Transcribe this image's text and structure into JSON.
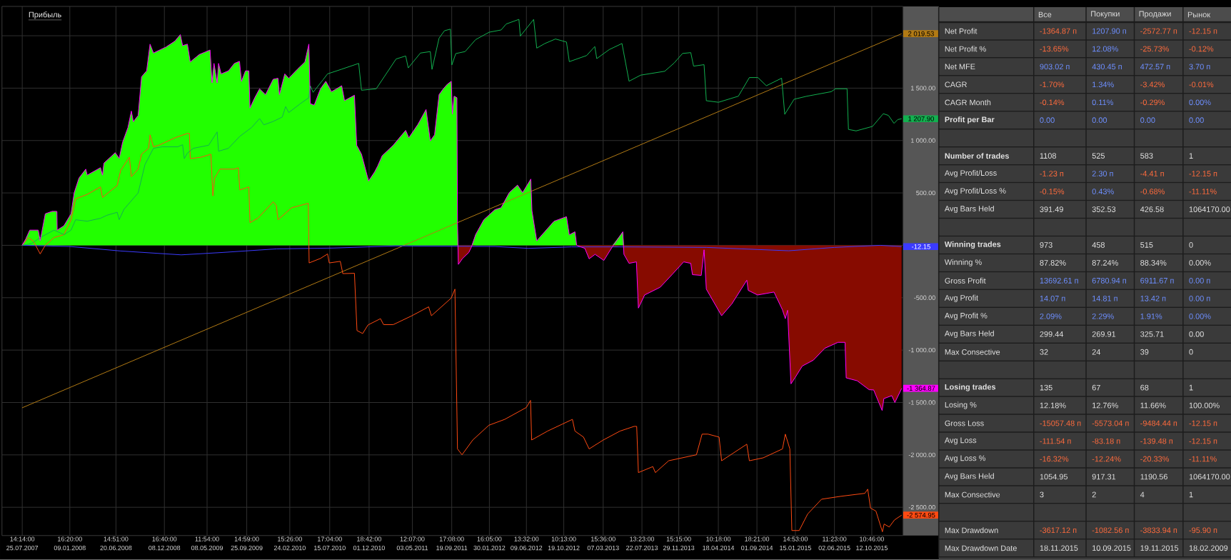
{
  "chart_data": [
    {
      "type": "line",
      "title": "Прибыль",
      "x": [
        "2007-07-25",
        "2007-08-07",
        "2007-08-21",
        "2007-09-20",
        "2007-09-27",
        "2007-10-15",
        "2007-11-08",
        "2007-11-25",
        "2007-11-26",
        "2007-12-20",
        "2008-01-14",
        "2008-01-25",
        "2008-02-11",
        "2008-03-06",
        "2008-03-11",
        "2008-04-27",
        "2008-05-04",
        "2008-05-09",
        "2008-06-18",
        "2008-07-02",
        "2008-07-14",
        "2008-08-02",
        "2008-08-14",
        "2008-08-21",
        "2008-09-07",
        "2008-09-19",
        "2008-10-07",
        "2008-10-19",
        "2008-10-31",
        "2008-12-14",
        "2009-01-15",
        "2009-02-03",
        "2009-02-11",
        "2009-02-28",
        "2009-03-10",
        "2009-04-11",
        "2009-05-19",
        "2009-05-26",
        "2009-06-02",
        "2009-06-13",
        "2009-06-18",
        "2009-06-27",
        "2009-07-23",
        "2009-08-13",
        "2009-08-31",
        "2009-09-07",
        "2009-09-21",
        "2009-10-03",
        "2009-10-07",
        "2009-10-24",
        "2009-11-10",
        "2009-12-01",
        "2009-12-28",
        "2010-01-14",
        "2010-01-19",
        "2010-02-07",
        "2010-02-21",
        "2010-03-23",
        "2010-04-19",
        "2010-05-03",
        "2010-05-08",
        "2010-05-22",
        "2010-06-13",
        "2010-07-02",
        "2010-07-22",
        "2010-08-27",
        "2010-09-06",
        "2010-10-11",
        "2010-10-19",
        "2010-11-05",
        "2010-11-30",
        "2010-12-21",
        "2011-01-01",
        "2011-01-17",
        "2011-02-25",
        "2011-04-10",
        "2011-04-21",
        "2011-05-23",
        "2011-06-21",
        "2011-07-06",
        "2011-07-21",
        "2011-08-06",
        "2011-08-21",
        "2011-09-04",
        "2011-09-18",
        "2011-09-22",
        "2011-09-28",
        "2011-10-08",
        "2011-10-10",
        "2011-10-13",
        "2011-10-28",
        "2011-11-19",
        "2011-11-29",
        "2011-12-13",
        "2012-01-11",
        "2012-02-19",
        "2012-03-12",
        "2012-04-10",
        "2012-05-09",
        "2012-05-27",
        "2012-06-25",
        "2012-06-29",
        "2012-07-16",
        "2012-08-13",
        "2012-09-15",
        "2012-10-29",
        "2012-11-08",
        "2012-11-28",
        "2012-12-04",
        "2013-01-02",
        "2013-01-17",
        "2013-02-07",
        "2013-03-10",
        "2013-04-09",
        "2013-05-16",
        "2013-05-20",
        "2013-06-07",
        "2013-07-03",
        "2013-07-10",
        "2013-08-01",
        "2013-09-25",
        "2013-11-08",
        "2013-12-17",
        "2014-01-11",
        "2014-01-17",
        "2014-02-17",
        "2014-02-27",
        "2014-03-07",
        "2014-04-30",
        "2014-06-05",
        "2014-07-28",
        "2014-08-02",
        "2014-09-04",
        "2014-11-01",
        "2014-12-01",
        "2014-12-11",
        "2014-12-19",
        "2014-12-31",
        "2015-01-15",
        "2015-02-09",
        "2015-03-20",
        "2015-04-29",
        "2015-06-15",
        "2015-07-10",
        "2015-07-14",
        "2015-08-22",
        "2015-10-03",
        "2015-10-19",
        "2015-11-18",
        "2015-11-24",
        "2015-12-22",
        "2016-01-02",
        "2016-01-26"
      ],
      "xlim": [
        "2007-05-15",
        "2016-01-31"
      ],
      "ylim": [
        -2770,
        2280
      ],
      "xticks": [
        {
          "value": "2007-07-25T14:14",
          "label": "14:14:00 25.07.2007"
        },
        {
          "value": "2008-01-09T16:20",
          "label": "16:20:00 09.01.2008"
        },
        {
          "value": "2008-06-20T14:51",
          "label": "14:51:00 20.06.2008"
        },
        {
          "value": "2008-12-08T16:40",
          "label": "16:40:00 08.12.2008"
        },
        {
          "value": "2009-05-08T11:54",
          "label": "11:54:00 08.05.2009"
        },
        {
          "value": "2009-09-25T14:59",
          "label": "14:59:00 25.09.2009"
        },
        {
          "value": "2010-02-24T15:26",
          "label": "15:26:00 24.02.2010"
        },
        {
          "value": "2010-07-15T17:04",
          "label": "17:04:00 15.07.2010"
        },
        {
          "value": "2010-12-01T18:42",
          "label": "18:42:00 01.12.2010"
        },
        {
          "value": "2011-05-03T12:07",
          "label": "12:07:00 03.05.2011"
        },
        {
          "value": "2011-09-19T17:08",
          "label": "17:08:00 19.09.2011"
        },
        {
          "value": "2012-01-30T16:05",
          "label": "16:05:00 30.01.2012"
        },
        {
          "value": "2012-06-09T13:32",
          "label": "13:32:00 09.06.2012"
        },
        {
          "value": "2012-10-19T10:13",
          "label": "10:13:00 19.10.2012"
        },
        {
          "value": "2013-03-07T15:36",
          "label": "15:36:00 07.03.2013"
        },
        {
          "value": "2013-07-22T13:23",
          "label": "13:23:00 22.07.2013"
        },
        {
          "value": "2013-11-29T15:15",
          "label": "15:15:00 29.11.2013"
        },
        {
          "value": "2014-04-18T10:18",
          "label": "10:18:00 18.04.2014"
        },
        {
          "value": "2014-09-01T18:21",
          "label": "18:21:00 01.09.2014"
        },
        {
          "value": "2015-01-15T14:53",
          "label": "14:53:00 15.01.2015"
        },
        {
          "value": "2015-06-02T11:23",
          "label": "11:23:00 02.06.2015"
        },
        {
          "value": "2015-10-12T10:46",
          "label": "10:46:00 12.10.2015"
        }
      ],
      "yticks": [
        {
          "value": -2500,
          "label": "-2 500.00"
        },
        {
          "value": -2000,
          "label": "-2 000.00"
        },
        {
          "value": -1500,
          "label": "-1 500.00"
        },
        {
          "value": -1000,
          "label": "-1 000.00"
        },
        {
          "value": -500,
          "label": "-500.00"
        },
        {
          "value": 0,
          "label": null
        },
        {
          "value": 500,
          "label": "500.00"
        },
        {
          "value": 1000,
          "label": "1 000.00"
        },
        {
          "value": 1500,
          "label": "1 500.00"
        },
        {
          "value": 2000,
          "label": null
        }
      ],
      "grid": true,
      "series": [
        {
          "type": "area",
          "color": "#22ff00",
          "values": [
            0,
            60,
            145,
            145,
            45,
            301,
            324,
            324,
            145,
            187,
            301,
            500,
            642,
            727,
            670,
            741,
            670,
            784,
            884,
            830,
            983,
            1125,
            1281,
            1180,
            1239,
            1608,
            1665,
            1920,
            1835,
            1892,
            1949,
            2011,
            1906,
            1920,
            1750,
            1821,
            1864,
            1551,
            1736,
            1551,
            1736,
            1636,
            1665,
            1736,
            1756,
            1565,
            1665,
            1665,
            1310,
            1409,
            1494,
            1438,
            1585,
            1594,
            1438,
            1636,
            1594,
            1679,
            1750,
            1920,
            1352,
            1338,
            1494,
            1565,
            1466,
            1523,
            1381,
            1432,
            955,
            869,
            614,
            699,
            756,
            855,
            955,
            1097,
            1026,
            1153,
            1296,
            997,
            1054,
            1438,
            1494,
            1537,
            1565,
            1253,
            1423,
            1409,
            216,
            0,
            0,
            0,
            0,
            102,
            244,
            340,
            359,
            503,
            575,
            503,
            632,
            330,
            43,
            129,
            230,
            273,
            100,
            129,
            0,
            0,
            0,
            0,
            0,
            0,
            129,
            0,
            0,
            0,
            0,
            0,
            0,
            0,
            0,
            0,
            0,
            0,
            0,
            0,
            0,
            0,
            0,
            0,
            0,
            0,
            0,
            0,
            0,
            0,
            0,
            0,
            0,
            0,
            0,
            0,
            0,
            0,
            0,
            0,
            0,
            0,
            0,
            0,
            0
          ]
        },
        {
          "type": "area",
          "color": "#870b00",
          "values": [
            0,
            0,
            0,
            0,
            0,
            0,
            0,
            0,
            0,
            0,
            0,
            0,
            0,
            0,
            0,
            0,
            0,
            0,
            0,
            0,
            0,
            0,
            0,
            0,
            0,
            0,
            0,
            0,
            0,
            0,
            0,
            0,
            0,
            0,
            0,
            0,
            0,
            0,
            0,
            0,
            0,
            0,
            0,
            0,
            0,
            0,
            0,
            0,
            0,
            0,
            0,
            0,
            0,
            0,
            0,
            0,
            0,
            0,
            0,
            0,
            0,
            0,
            0,
            0,
            0,
            0,
            0,
            0,
            0,
            0,
            0,
            0,
            0,
            0,
            0,
            0,
            0,
            0,
            0,
            0,
            0,
            0,
            0,
            0,
            0,
            0,
            0,
            0,
            0,
            -182,
            -125,
            -68,
            -11,
            0,
            0,
            0,
            0,
            0,
            0,
            0,
            0,
            0,
            0,
            0,
            0,
            0,
            0,
            0,
            0,
            -29,
            -129,
            -86,
            -144,
            -14,
            0,
            -86,
            -172,
            -158,
            -599,
            -474,
            -400,
            -273,
            -158,
            -172,
            -280,
            -287,
            -43,
            -418,
            -672,
            -559,
            -333,
            -430,
            -474,
            -446,
            -616,
            -700,
            -620,
            -1322,
            -1260,
            -1152,
            -1096,
            -983,
            -926,
            -926,
            -1265,
            -1293,
            -1378,
            -1380,
            -1576,
            -1463,
            -1435,
            -1500,
            -1364.87
          ]
        },
        {
          "type": "line",
          "color": "#b27a14",
          "x": [
            "2007-07-25",
            "2016-01-26"
          ],
          "values": [
            -1551,
            2019.53
          ]
        },
        {
          "type": "line",
          "color": "#3b3bff",
          "x": [
            "2007-07-25",
            "2008-01-09",
            "2008-07-07",
            "2009-02-06",
            "2009-07-03",
            "2010-01-09",
            "2010-07-29",
            "2011-03-03",
            "2012-02-19",
            "2012-06-16",
            "2012-11-16",
            "2013-05-28",
            "2014-03-07",
            "2014-12-23",
            "2015-06-02",
            "2015-11-11",
            "2016-01-26"
          ],
          "values": [
            0,
            -11,
            -54,
            -91,
            -68,
            -34,
            -26,
            -6,
            -11,
            -29,
            -15,
            -15,
            -20,
            -52,
            -20,
            0,
            -12.15
          ]
        },
        {
          "type": "line",
          "color": "#ff4a12",
          "x": [
            "2007-07-25",
            "2007-08-16",
            "2007-09-03",
            "2007-09-27",
            "2007-10-15",
            "2007-11-15",
            "2007-12-20",
            "2008-01-14",
            "2008-01-30",
            "2008-03-11",
            "2008-04-27",
            "2008-05-04",
            "2008-06-25",
            "2008-07-07",
            "2008-08-07",
            "2008-08-14",
            "2008-09-07",
            "2008-09-19",
            "2008-10-14",
            "2008-10-19",
            "2008-10-31",
            "2008-11-19",
            "2009-01-15",
            "2009-02-28",
            "2009-03-07",
            "2009-03-10",
            "2009-04-17",
            "2009-05-22",
            "2009-05-29",
            "2009-06-04",
            "2009-06-23",
            "2009-08-13",
            "2009-08-27",
            "2009-09-01",
            "2009-10-03",
            "2009-10-07",
            "2009-11-04",
            "2009-12-28",
            "2010-01-08",
            "2010-01-14",
            "2010-03-03",
            "2010-05-01",
            "2010-05-04",
            "2010-06-13",
            "2010-07-08",
            "2010-07-14",
            "2010-08-22",
            "2010-08-31",
            "2010-10-11",
            "2010-10-20",
            "2010-11-09",
            "2010-11-28",
            "2011-01-11",
            "2011-01-22",
            "2011-02-25",
            "2011-05-02",
            "2011-06-30",
            "2011-07-10",
            "2011-09-18",
            "2011-10-01",
            "2011-10-10",
            "2011-10-26",
            "2011-12-03",
            "2012-01-29",
            "2012-03-25",
            "2012-06-09",
            "2012-06-24",
            "2012-06-28",
            "2012-08-23",
            "2012-11-19",
            "2012-11-28",
            "2012-12-28",
            "2013-01-17",
            "2013-03-08",
            "2013-05-06",
            "2013-06-25",
            "2013-07-04",
            "2013-07-10",
            "2013-08-30",
            "2013-09-08",
            "2013-10-25",
            "2014-01-31",
            "2014-02-20",
            "2014-03-13",
            "2014-04-21",
            "2014-04-30",
            "2014-07-28",
            "2014-08-06",
            "2014-09-24",
            "2014-12-01",
            "2014-12-11",
            "2014-12-27",
            "2015-01-03",
            "2015-01-29",
            "2015-02-28",
            "2015-04-18",
            "2015-06-26",
            "2015-09-18",
            "2015-09-28",
            "2015-10-08",
            "2015-10-27",
            "2015-11-19",
            "2015-11-25",
            "2015-12-13",
            "2016-01-01",
            "2016-01-26"
          ],
          "values": [
            0,
            74,
            40,
            -82,
            0,
            74,
            102,
            244,
            443,
            486,
            557,
            457,
            571,
            713,
            841,
            656,
            727,
            869,
            926,
            1054,
            940,
            955,
            1026,
            1068,
            1068,
            827,
            841,
            869,
            472,
            642,
            727,
            727,
            740,
            528,
            557,
            216,
            259,
            415,
            380,
            244,
            358,
            401,
            -168,
            -125,
            -82,
            -168,
            -153,
            -270,
            -267,
            -813,
            -842,
            -760,
            -700,
            -757,
            -757,
            -672,
            -587,
            -672,
            -503,
            -418,
            -1943,
            -1999,
            -1858,
            -1717,
            -1661,
            -1548,
            -1480,
            -1858,
            -1773,
            -1661,
            -1773,
            -1830,
            -1943,
            -1858,
            -1773,
            -1728,
            -1728,
            -2169,
            -2112,
            -2169,
            -2056,
            -1999,
            -1802,
            -1802,
            -1830,
            -2056,
            -1898,
            -2056,
            -2028,
            -1943,
            -1802,
            -1943,
            -2722,
            -2722,
            -2564,
            -2423,
            -2395,
            -2367,
            -2327,
            -2508,
            -2536,
            -2734,
            -2660,
            -2688,
            -2620,
            -2574.95
          ]
        },
        {
          "type": "line",
          "color": "#12b04f",
          "x": [
            "2007-07-25",
            "2007-08-28",
            "2007-09-27",
            "2007-11-15",
            "2007-12-20",
            "2008-01-14",
            "2008-01-30",
            "2008-03-11",
            "2008-04-27",
            "2008-05-20",
            "2008-06-25",
            "2008-07-02",
            "2008-07-19",
            "2008-09-07",
            "2008-10-01",
            "2008-10-31",
            "2008-12-01",
            "2009-01-25",
            "2009-02-11",
            "2009-02-17",
            "2009-02-28",
            "2009-03-21",
            "2009-05-14",
            "2009-06-13",
            "2009-06-18",
            "2009-07-23",
            "2009-09-01",
            "2009-10-13",
            "2009-11-10",
            "2009-11-25",
            "2009-12-28",
            "2010-01-29",
            "2010-02-10",
            "2010-02-21",
            "2010-04-03",
            "2010-05-03",
            "2010-05-08",
            "2010-05-18",
            "2010-06-22",
            "2010-07-08",
            "2010-08-26",
            "2010-10-26",
            "2010-11-05",
            "2010-12-27",
            "2011-03-07",
            "2011-04-10",
            "2011-04-19",
            "2011-06-01",
            "2011-07-06",
            "2011-07-12",
            "2011-08-06",
            "2011-08-25",
            "2011-09-15",
            "2011-09-20",
            "2011-10-04",
            "2011-11-06",
            "2011-12-13",
            "2012-01-30",
            "2012-03-12",
            "2012-03-30",
            "2012-05-14",
            "2012-05-19",
            "2012-07-05",
            "2012-07-16",
            "2012-08-13",
            "2012-09-20",
            "2012-10-29",
            "2012-11-08",
            "2013-01-08",
            "2013-02-06",
            "2013-02-13",
            "2013-03-29",
            "2013-05-13",
            "2013-06-07",
            "2013-07-18",
            "2013-10-11",
            "2013-11-13",
            "2013-12-13",
            "2014-01-11",
            "2014-01-21",
            "2014-02-27",
            "2014-03-07",
            "2014-04-19",
            "2014-06-28",
            "2014-08-06",
            "2014-09-05",
            "2014-10-05",
            "2014-11-28",
            "2014-12-09",
            "2015-01-11",
            "2015-02-25",
            "2015-05-22",
            "2015-06-06",
            "2015-07-17",
            "2015-07-22",
            "2015-08-18",
            "2015-10-15",
            "2015-11-22",
            "2015-12-10",
            "2015-12-30",
            "2016-01-12",
            "2016-01-26"
          ],
          "values": [
            0,
            17,
            74,
            145,
            102,
            145,
            244,
            230,
            258,
            287,
            315,
            245,
            344,
            500,
            770,
            926,
            940,
            940,
            960,
            827,
            880,
            926,
            955,
            1082,
            898,
            926,
            1040,
            1125,
            1210,
            1150,
            1182,
            1224,
            1324,
            1267,
            1352,
            1409,
            1523,
            1460,
            1580,
            1636,
            1680,
            1736,
            1480,
            1494,
            1778,
            1807,
            1693,
            1835,
            1849,
            1679,
            1977,
            2048,
            2063,
            1721,
            1830,
            1849,
            1963,
            2034,
            2055,
            2112,
            2156,
            1997,
            2156,
            1882,
            1925,
            1969,
            1940,
            1753,
            1811,
            1897,
            1782,
            1868,
            1926,
            1566,
            1624,
            1661,
            1739,
            1831,
            1839,
            1710,
            1724,
            1380,
            1365,
            1423,
            1601,
            1601,
            1523,
            1595,
            1250,
            1394,
            1423,
            1466,
            1494,
            1494,
            1106,
            1092,
            1135,
            1256,
            1240,
            1164,
            1200,
            1207.9
          ]
        },
        {
          "type": "line",
          "color": "#ff00ff",
          "values": [
            0,
            60,
            145,
            145,
            45,
            301,
            324,
            324,
            145,
            187,
            301,
            500,
            642,
            727,
            670,
            741,
            670,
            784,
            884,
            830,
            983,
            1125,
            1281,
            1180,
            1239,
            1608,
            1665,
            1920,
            1835,
            1892,
            1949,
            2011,
            1906,
            1920,
            1750,
            1821,
            1864,
            1551,
            1736,
            1551,
            1736,
            1636,
            1665,
            1736,
            1756,
            1565,
            1665,
            1665,
            1310,
            1409,
            1494,
            1438,
            1585,
            1594,
            1438,
            1636,
            1594,
            1679,
            1750,
            1920,
            1352,
            1338,
            1494,
            1565,
            1466,
            1523,
            1381,
            1432,
            955,
            869,
            614,
            699,
            756,
            855,
            955,
            1097,
            1026,
            1153,
            1296,
            997,
            1054,
            1438,
            1494,
            1537,
            1565,
            1253,
            1423,
            1409,
            216,
            -182,
            -125,
            -68,
            -11,
            102,
            244,
            340,
            359,
            503,
            575,
            503,
            632,
            330,
            43,
            129,
            230,
            273,
            100,
            129,
            0,
            -29,
            -129,
            -86,
            -144,
            -14,
            129,
            -86,
            -172,
            -158,
            -599,
            -474,
            -400,
            -273,
            -158,
            -172,
            -280,
            -287,
            -43,
            -418,
            -672,
            -559,
            -333,
            -430,
            -474,
            -446,
            -616,
            -700,
            -620,
            -1322,
            -1260,
            -1152,
            -1096,
            -983,
            -926,
            -926,
            -1265,
            -1293,
            -1378,
            -1380,
            -1576,
            -1463,
            -1435,
            -1500,
            -1364.87
          ]
        }
      ],
      "annotations": [
        {
          "text": "2 019.53",
          "x": "2016-01-26",
          "y": 2019.53
        },
        {
          "text": "1 207.90",
          "x": "2016-01-26",
          "y": 1207.9
        },
        {
          "text": "-12.15",
          "x": "2016-01-26",
          "y": -12.15
        },
        {
          "text": "-1 364.87",
          "x": "2016-01-26",
          "y": -1364.87
        },
        {
          "text": "-2 574.95",
          "x": "2016-01-26",
          "y": -2574.95
        }
      ]
    },
    {
      "type": "other",
      "categories": [
        "Все",
        "Покупки",
        "Продажи",
        "Рынок"
      ],
      "y_categories": [
        "Net Profit",
        "Net Profit %",
        "Net MFE",
        "CAGR",
        "CAGR Month",
        "Profit per Bar",
        null,
        "Number of trades",
        "Avg Profit/Loss",
        "Avg Profit/Loss %",
        "Avg Bars Held",
        null,
        "Winning trades",
        "Winning %",
        "Gross Profit",
        "Avg Profit",
        "Avg Profit %",
        "Avg Bars Held",
        "Max Consective",
        null,
        "Losing trades",
        "Losing %",
        "Gross Loss",
        "Avg Loss",
        "Avg Loss %",
        "Avg Bars Held",
        "Max Consective",
        null,
        "Max Drawdown",
        "Max Drawdown Date"
      ],
      "cell_labels": [
        [
          "-1364.87 п",
          "1207.90 п",
          "-2572.77 п",
          "-12.15 п"
        ],
        [
          "-13.65%",
          "12.08%",
          "-25.73%",
          "-0.12%"
        ],
        [
          "903.02 п",
          "430.45 п",
          "472.57 п",
          "3.70 п"
        ],
        [
          "-1.70%",
          "1.34%",
          "-3.42%",
          "-0.01%"
        ],
        [
          "-0.14%",
          "0.11%",
          "-0.29%",
          "0.00%"
        ],
        [
          "0.00",
          "0.00",
          "0.00",
          "0.00"
        ],
        [
          null,
          null,
          null,
          null
        ],
        [
          "1108",
          "525",
          "583",
          "1"
        ],
        [
          "-1.23 п",
          "2.30 п",
          "-4.41 п",
          "-12.15 п"
        ],
        [
          "-0.15%",
          "0.43%",
          "-0.68%",
          "-11.11%"
        ],
        [
          "391.49",
          "352.53",
          "426.58",
          "1064170.00"
        ],
        [
          null,
          null,
          null,
          null
        ],
        [
          "973",
          "458",
          "515",
          "0"
        ],
        [
          "87.82%",
          "87.24%",
          "88.34%",
          "0.00%"
        ],
        [
          "13692.61 п",
          "6780.94 п",
          "6911.67 п",
          "0.00 п"
        ],
        [
          "14.07 п",
          "14.81 п",
          "13.42 п",
          "0.00 п"
        ],
        [
          "2.09%",
          "2.29%",
          "1.91%",
          "0.00%"
        ],
        [
          "299.44",
          "269.91",
          "325.71",
          "0.00"
        ],
        [
          "32",
          "24",
          "39",
          "0"
        ],
        [
          null,
          null,
          null,
          null
        ],
        [
          "135",
          "67",
          "68",
          "1"
        ],
        [
          "12.18%",
          "12.76%",
          "11.66%",
          "100.00%"
        ],
        [
          "-15057.48 п",
          "-5573.04 п",
          "-9484.44 п",
          "-12.15 п"
        ],
        [
          "-111.54 п",
          "-83.18 п",
          "-139.48 п",
          "-12.15 п"
        ],
        [
          "-16.32%",
          "-12.24%",
          "-20.33%",
          "-11.11%"
        ],
        [
          "1054.95",
          "917.31",
          "1190.56",
          "1064170.00"
        ],
        [
          "3",
          "2",
          "4",
          "1"
        ],
        [
          null,
          null,
          null,
          null
        ],
        [
          "-3617.12 п",
          "-1082.56 п",
          "-3833.94 п",
          "-95.90 п"
        ],
        [
          "18.11.2015",
          "10.09.2015",
          "19.11.2015",
          "18.02.2009"
        ]
      ],
      "colors": [
        [
          "#ff6b3d",
          "#6e8fff",
          "#ff6b3d",
          "#ff6b3d"
        ],
        [
          "#ff6b3d",
          "#6e8fff",
          "#ff6b3d",
          "#ff6b3d"
        ],
        [
          "#6e8fff",
          "#6e8fff",
          "#6e8fff",
          "#6e8fff"
        ],
        [
          "#ff6b3d",
          "#6e8fff",
          "#ff6b3d",
          "#ff6b3d"
        ],
        [
          "#ff6b3d",
          "#6e8fff",
          "#ff6b3d",
          "#6e8fff"
        ],
        [
          "#6e8fff",
          "#6e8fff",
          "#6e8fff",
          "#6e8fff"
        ],
        [
          null,
          null,
          null,
          null
        ],
        [
          "#e3e3e3",
          "#e3e3e3",
          "#e3e3e3",
          "#e3e3e3"
        ],
        [
          "#ff6b3d",
          "#6e8fff",
          "#ff6b3d",
          "#ff6b3d"
        ],
        [
          "#ff6b3d",
          "#6e8fff",
          "#ff6b3d",
          "#ff6b3d"
        ],
        [
          "#e3e3e3",
          "#e3e3e3",
          "#e3e3e3",
          "#e3e3e3"
        ],
        [
          null,
          null,
          null,
          null
        ],
        [
          "#e3e3e3",
          "#e3e3e3",
          "#e3e3e3",
          "#e3e3e3"
        ],
        [
          "#e3e3e3",
          "#e3e3e3",
          "#e3e3e3",
          "#e3e3e3"
        ],
        [
          "#6e8fff",
          "#6e8fff",
          "#6e8fff",
          "#6e8fff"
        ],
        [
          "#6e8fff",
          "#6e8fff",
          "#6e8fff",
          "#6e8fff"
        ],
        [
          "#6e8fff",
          "#6e8fff",
          "#6e8fff",
          "#6e8fff"
        ],
        [
          "#e3e3e3",
          "#e3e3e3",
          "#e3e3e3",
          "#e3e3e3"
        ],
        [
          "#e3e3e3",
          "#e3e3e3",
          "#e3e3e3",
          "#e3e3e3"
        ],
        [
          null,
          null,
          null,
          null
        ],
        [
          "#e3e3e3",
          "#e3e3e3",
          "#e3e3e3",
          "#e3e3e3"
        ],
        [
          "#e3e3e3",
          "#e3e3e3",
          "#e3e3e3",
          "#e3e3e3"
        ],
        [
          "#ff6b3d",
          "#ff6b3d",
          "#ff6b3d",
          "#ff6b3d"
        ],
        [
          "#ff6b3d",
          "#ff6b3d",
          "#ff6b3d",
          "#ff6b3d"
        ],
        [
          "#ff6b3d",
          "#ff6b3d",
          "#ff6b3d",
          "#ff6b3d"
        ],
        [
          "#e3e3e3",
          "#e3e3e3",
          "#e3e3e3",
          "#e3e3e3"
        ],
        [
          "#e3e3e3",
          "#e3e3e3",
          "#e3e3e3",
          "#e3e3e3"
        ],
        [
          null,
          null,
          null,
          null
        ],
        [
          "#ff6b3d",
          "#ff6b3d",
          "#ff6b3d",
          "#ff6b3d"
        ],
        [
          "#e3e3e3",
          "#e3e3e3",
          "#e3e3e3",
          "#e3e3e3"
        ]
      ]
    }
  ]
}
